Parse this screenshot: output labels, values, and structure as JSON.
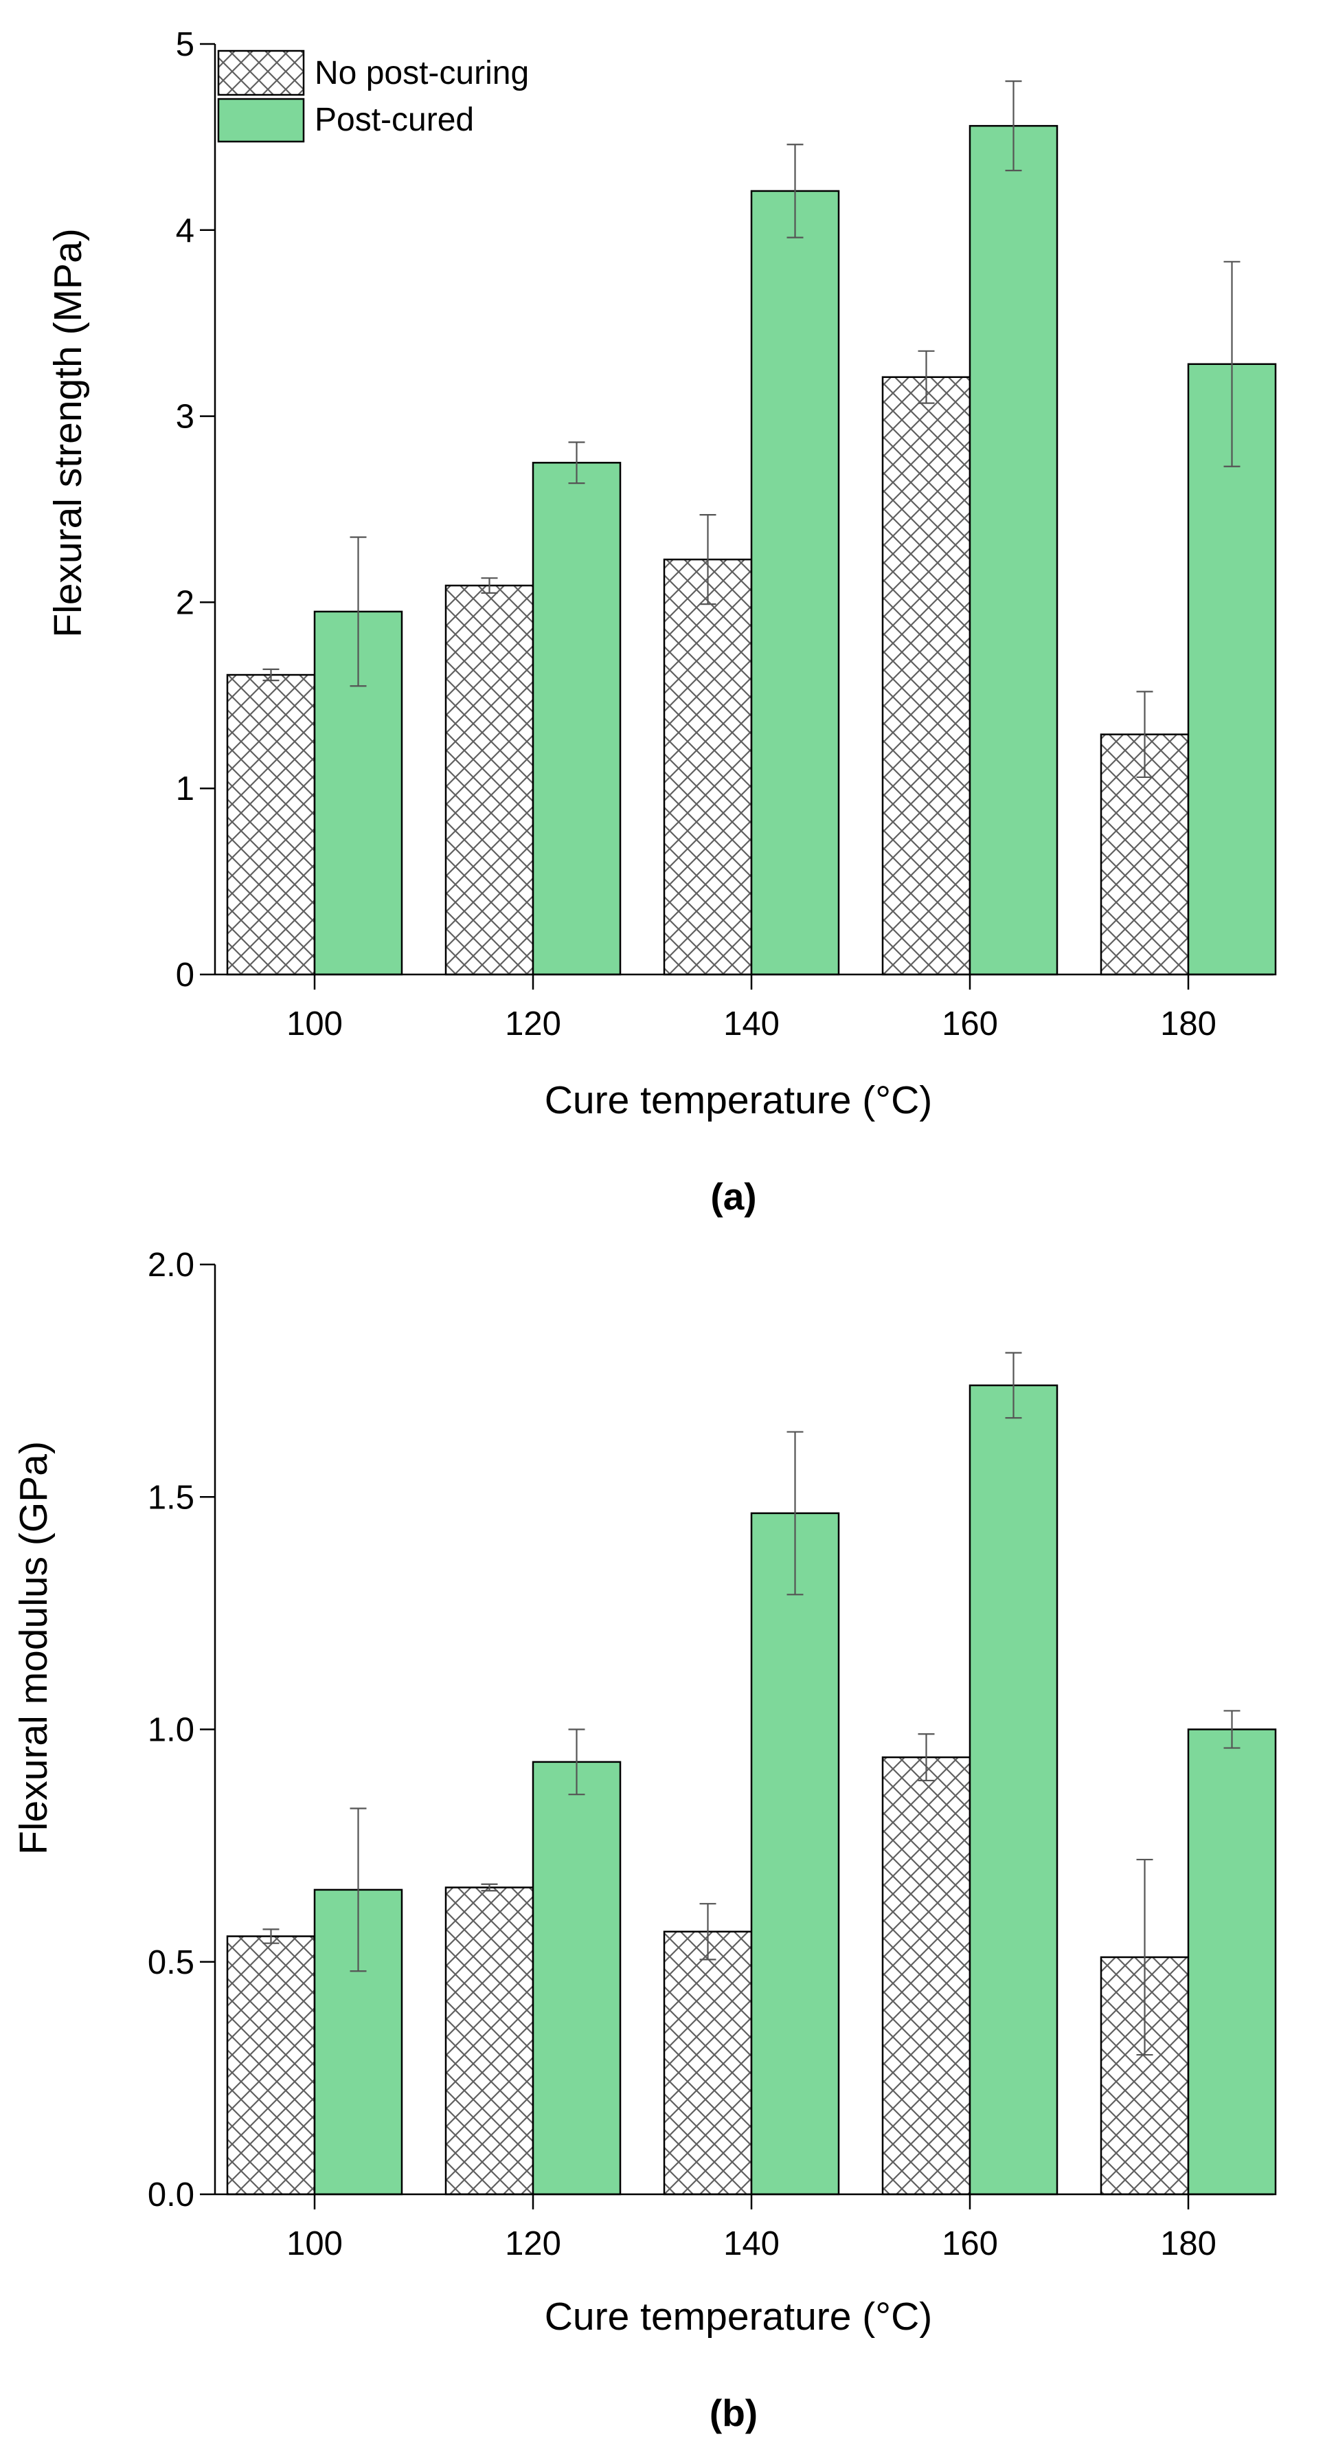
{
  "colors": {
    "post_cured_fill": "#7ed89a",
    "axis": "#000000",
    "hatch_line": "#606060",
    "error_bar": "#555555"
  },
  "legend": [
    {
      "name": "No post-curing",
      "style": "hatch-icon"
    },
    {
      "name": "Post-cured",
      "style": "green-fill"
    }
  ],
  "chart_data": [
    {
      "type": "bar",
      "panel_label": "(a)",
      "categories": [
        "100",
        "120",
        "140",
        "160",
        "180"
      ],
      "xlabel": "Cure temperature (°C)",
      "ylabel": "Flexural strength (MPa)",
      "ylim": [
        0,
        5
      ],
      "yticks": [
        0,
        1,
        2,
        3,
        4,
        5
      ],
      "ytick_labels": [
        "0",
        "1",
        "2",
        "3",
        "4",
        "5"
      ],
      "legend_position": "top-left",
      "series": [
        {
          "name": "No post-curing",
          "values": [
            1.61,
            2.09,
            2.23,
            3.21,
            1.29
          ],
          "errors": [
            0.03,
            0.04,
            0.24,
            0.14,
            0.23
          ]
        },
        {
          "name": "Post-cured",
          "values": [
            1.95,
            2.75,
            4.21,
            4.56,
            3.28
          ],
          "errors": [
            0.4,
            0.11,
            0.25,
            0.24,
            0.55
          ]
        }
      ]
    },
    {
      "type": "bar",
      "panel_label": "(b)",
      "categories": [
        "100",
        "120",
        "140",
        "160",
        "180"
      ],
      "xlabel": "Cure temperature (°C)",
      "ylabel": "Flexural modulus (GPa)",
      "ylim": [
        0,
        2.0
      ],
      "yticks": [
        0,
        0.5,
        1.0,
        1.5,
        2.0
      ],
      "ytick_labels": [
        "0.0",
        "0.5",
        "1.0",
        "1.5",
        "2.0"
      ],
      "legend_position": "none",
      "series": [
        {
          "name": "No post-curing",
          "values": [
            0.555,
            0.66,
            0.565,
            0.94,
            0.51
          ],
          "errors": [
            0.015,
            0.007,
            0.06,
            0.05,
            0.21
          ]
        },
        {
          "name": "Post-cured",
          "values": [
            0.655,
            0.93,
            1.465,
            1.74,
            1.0
          ],
          "errors": [
            0.175,
            0.07,
            0.175,
            0.07,
            0.04
          ]
        }
      ]
    }
  ]
}
